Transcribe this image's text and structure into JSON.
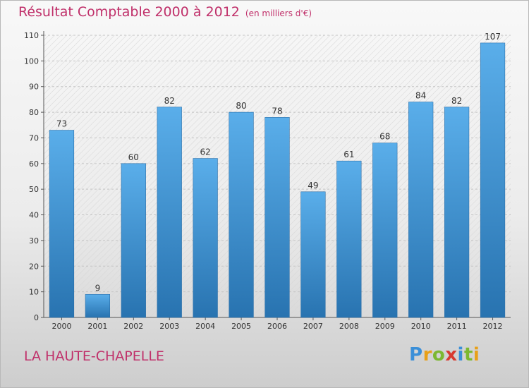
{
  "chart_data": {
    "type": "bar",
    "title": "Résultat Comptable 2000 à 2012",
    "subtitle": "(en milliers d'€)",
    "xlabel": "",
    "ylabel": "",
    "ylim": [
      0,
      110
    ],
    "yticks": [
      0,
      10,
      20,
      30,
      40,
      50,
      60,
      70,
      80,
      90,
      100,
      110
    ],
    "grid": true,
    "categories": [
      "2000",
      "2001",
      "2002",
      "2003",
      "2004",
      "2005",
      "2006",
      "2007",
      "2008",
      "2009",
      "2010",
      "2011",
      "2012"
    ],
    "values": [
      73,
      9,
      60,
      82,
      62,
      80,
      78,
      49,
      61,
      68,
      84,
      82,
      107
    ],
    "colors": {
      "bar_top": "#5aaeea",
      "bar_bottom": "#2873b0",
      "title": "#c0306a"
    }
  },
  "footer": {
    "location": "LA HAUTE-CHAPELLE"
  },
  "logo": {
    "letters": [
      "P",
      "r",
      "o",
      "x",
      "i",
      "t",
      "i"
    ],
    "colors": [
      "#3a8fd8",
      "#e8a018",
      "#7cb830",
      "#d83a30",
      "#3a8fd8",
      "#7cb830",
      "#e8a018"
    ]
  }
}
